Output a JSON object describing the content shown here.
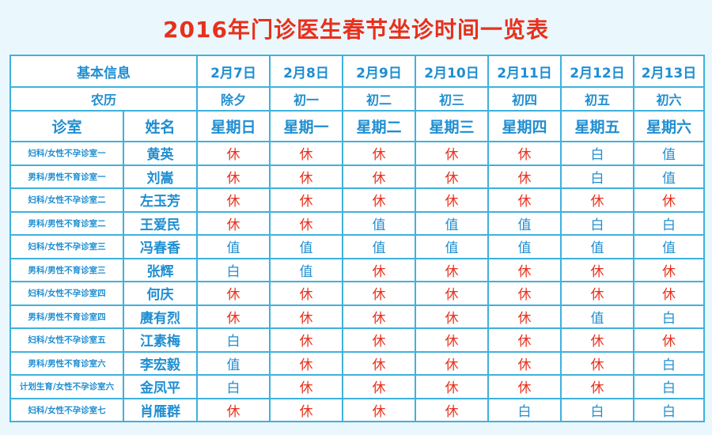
{
  "title": "2016年门诊医生春节坐诊时间一览表",
  "colors": {
    "rest": "#e8301c",
    "duty": "#1f8ed1",
    "border": "#3fb1dd"
  },
  "header": {
    "basic_info": "基本信息",
    "lunar": "农历",
    "room": "诊室",
    "name": "姓名",
    "dates": [
      "2月7日",
      "2月8日",
      "2月9日",
      "2月10日",
      "2月11日",
      "2月12日",
      "2月13日"
    ],
    "lunar_days": [
      "除夕",
      "初一",
      "初二",
      "初三",
      "初四",
      "初五",
      "初六"
    ],
    "weekdays": [
      "星期日",
      "星期一",
      "星期二",
      "星期三",
      "星期四",
      "星期五",
      "星期六"
    ]
  },
  "rows": [
    {
      "room": "妇科/女性不孕诊室一",
      "name": "黄英",
      "days": [
        "休",
        "休",
        "休",
        "休",
        "休",
        "白",
        "值"
      ]
    },
    {
      "room": "男科/男性不育诊室一",
      "name": "刘嵩",
      "days": [
        "休",
        "休",
        "休",
        "休",
        "休",
        "白",
        "值"
      ]
    },
    {
      "room": "妇科/女性不孕诊室二",
      "name": "左玉芳",
      "days": [
        "休",
        "休",
        "休",
        "休",
        "休",
        "休",
        "休"
      ]
    },
    {
      "room": "男科/男性不育诊室二",
      "name": "王爱民",
      "days": [
        "休",
        "休",
        "值",
        "值",
        "值",
        "白",
        "白"
      ]
    },
    {
      "room": "妇科/女性不孕诊室三",
      "name": "冯春香",
      "days": [
        "值",
        "值",
        "值",
        "值",
        "值",
        "值",
        "值"
      ]
    },
    {
      "room": "男科/男性不育诊室三",
      "name": "张辉",
      "days": [
        "白",
        "值",
        "休",
        "休",
        "休",
        "休",
        "休"
      ]
    },
    {
      "room": "妇科/女性不孕诊室四",
      "name": "何庆",
      "days": [
        "休",
        "休",
        "休",
        "休",
        "休",
        "休",
        "休"
      ]
    },
    {
      "room": "男科/男性不育诊室四",
      "name": "赓有烈",
      "days": [
        "休",
        "休",
        "休",
        "休",
        "休",
        "值",
        "白"
      ]
    },
    {
      "room": "妇科/女性不孕诊室五",
      "name": "江素梅",
      "days": [
        "白",
        "休",
        "休",
        "休",
        "休",
        "休",
        "休"
      ]
    },
    {
      "room": "男科/男性不育诊室六",
      "name": "李宏毅",
      "days": [
        "值",
        "休",
        "休",
        "休",
        "休",
        "休",
        "白"
      ]
    },
    {
      "room": "计划生育/女性不孕诊室六",
      "name": "金凤平",
      "days": [
        "白",
        "休",
        "休",
        "休",
        "休",
        "休",
        "白"
      ]
    },
    {
      "room": "妇科/女性不孕诊室七",
      "name": "肖雁群",
      "days": [
        "休",
        "休",
        "休",
        "休",
        "白",
        "白",
        "白"
      ]
    }
  ]
}
